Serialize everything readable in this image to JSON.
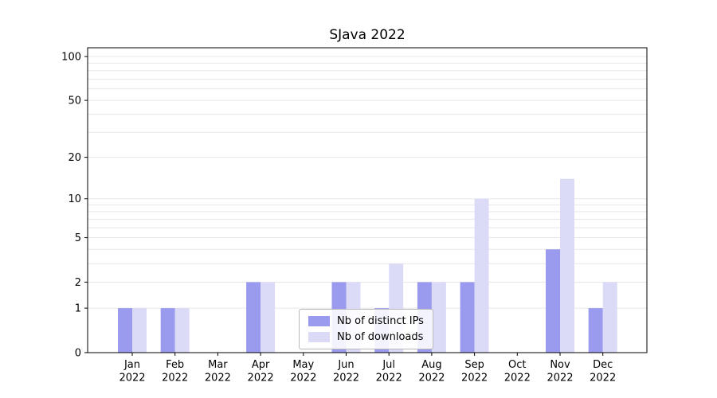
{
  "title": "SJava 2022",
  "colors": {
    "grid": "#e7e7e7",
    "axis": "#000000",
    "background": "#ffffff"
  },
  "chart_data": {
    "type": "bar",
    "title": "SJava 2022",
    "scale": "log10(1+value)",
    "categories": [
      "Jan",
      "Feb",
      "Mar",
      "Apr",
      "May",
      "Jun",
      "Jul",
      "Aug",
      "Sep",
      "Oct",
      "Nov",
      "Dec"
    ],
    "year": "2022",
    "series": [
      {
        "name": "Nb of distinct IPs",
        "color": "#9a9aee",
        "values": [
          1,
          1,
          0,
          2,
          0,
          2,
          1,
          2,
          2,
          0,
          4,
          1
        ]
      },
      {
        "name": "Nb of downloads",
        "color": "#dbdbf8",
        "values": [
          1,
          1,
          0,
          2,
          0,
          2,
          3,
          2,
          10,
          0,
          14,
          2
        ]
      }
    ],
    "yticks": [
      0,
      1,
      2,
      5,
      10,
      20,
      50,
      100
    ],
    "minor_gridlines": [
      1,
      2,
      3,
      4,
      5,
      6,
      7,
      8,
      9,
      10,
      20,
      30,
      40,
      50,
      60,
      70,
      80,
      90,
      100
    ],
    "ylim": [
      0,
      115
    ],
    "xlabel": "",
    "ylabel": "",
    "legend_position": "lower center",
    "grid": "horizontal-only"
  }
}
